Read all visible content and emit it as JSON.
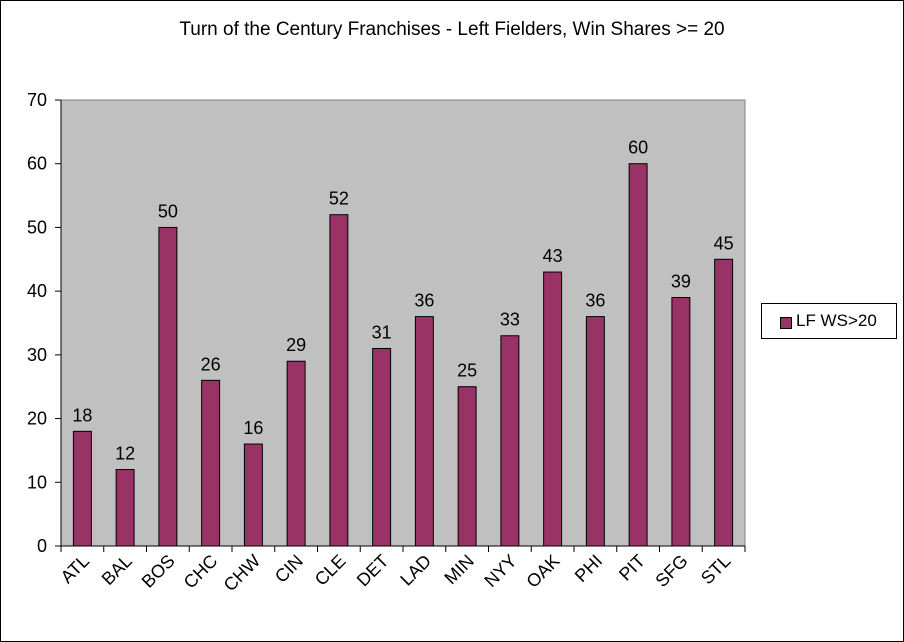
{
  "chart_data": {
    "type": "bar",
    "title": "Turn  of the Century Franchises - Left Fielders, Win Shares >= 20",
    "categories": [
      "ATL",
      "BAL",
      "BOS",
      "CHC",
      "CHW",
      "CIN",
      "CLE",
      "DET",
      "LAD",
      "MIN",
      "NYY",
      "OAK",
      "PHI",
      "PIT",
      "SFG",
      "STL"
    ],
    "series": [
      {
        "name": "LF WS>20",
        "values": [
          18,
          12,
          50,
          26,
          16,
          29,
          52,
          31,
          36,
          25,
          33,
          43,
          36,
          60,
          39,
          45
        ]
      }
    ],
    "ylim": [
      0,
      70
    ],
    "yticks": [
      0,
      10,
      20,
      30,
      40,
      50,
      60,
      70
    ],
    "grid": false,
    "legend": "right",
    "data_labels": true,
    "bar_color": "#993366",
    "plot_background": "#c0c0c0"
  }
}
